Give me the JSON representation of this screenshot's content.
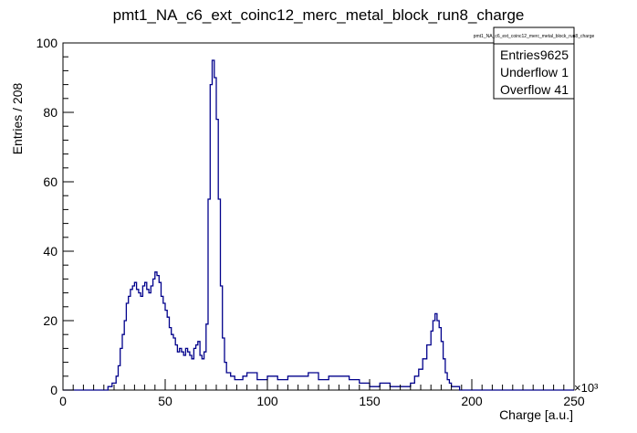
{
  "chart_data": {
    "type": "histogram",
    "title": "pmt1_NA_c6_ext_coinc12_merc_metal_block_run8_charge",
    "xlabel": "Charge [a.u.]",
    "ylabel": "Entries / 208",
    "x_multiplier_label": "×10³",
    "xlim": [
      0,
      250
    ],
    "ylim": [
      0,
      100
    ],
    "x_ticks": [
      0,
      50,
      100,
      150,
      200,
      250
    ],
    "y_ticks": [
      0,
      20,
      40,
      60,
      80,
      100
    ],
    "line_color": "#00008b",
    "grid": false,
    "legend": "none",
    "stats_box": {
      "title": "pmt1_NA_c6_ext_coinc12_merc_metal_block_run8_charge",
      "position": "top-right",
      "rows": [
        {
          "label": "Entries",
          "value": "9625"
        },
        {
          "label": "Underflow",
          "value": "1"
        },
        {
          "label": "Overflow",
          "value": "41"
        }
      ]
    },
    "series": [
      {
        "x": [
          0,
          10,
          20,
          22,
          24,
          26,
          27,
          28,
          29,
          30,
          31,
          32,
          33,
          34,
          35,
          36,
          37,
          38,
          39,
          40,
          41,
          42,
          43,
          44,
          45,
          46,
          47,
          48,
          49,
          50,
          51,
          52,
          53,
          54,
          55,
          56,
          57,
          58,
          59,
          60,
          61,
          62,
          63,
          64,
          65,
          66,
          67,
          68,
          69,
          70,
          71,
          72,
          73,
          74,
          75,
          76,
          77,
          78,
          79,
          80,
          82,
          84,
          86,
          88,
          90,
          95,
          100,
          105,
          110,
          115,
          120,
          125,
          130,
          135,
          140,
          145,
          150,
          155,
          160,
          165,
          170,
          172,
          174,
          176,
          178,
          180,
          181,
          182,
          183,
          184,
          185,
          186,
          187,
          188,
          189,
          190,
          192,
          194,
          196,
          198,
          200,
          205,
          210,
          215,
          220,
          225,
          230,
          240,
          250
        ],
        "y": [
          0,
          0,
          0,
          1,
          2,
          4,
          7,
          12,
          16,
          20,
          25,
          27,
          29,
          30,
          31,
          29,
          28,
          27,
          30,
          31,
          29,
          28,
          30,
          32,
          34,
          33,
          31,
          27,
          25,
          23,
          21,
          18,
          16,
          15,
          13,
          11,
          12,
          11,
          10,
          12,
          11,
          10,
          9,
          12,
          13,
          14,
          10,
          9,
          11,
          19,
          55,
          88,
          95,
          90,
          78,
          55,
          30,
          15,
          8,
          5,
          4,
          3,
          3,
          4,
          5,
          3,
          4,
          3,
          4,
          4,
          5,
          3,
          4,
          4,
          3,
          2,
          1,
          2,
          1,
          1,
          2,
          4,
          6,
          9,
          13,
          17,
          20,
          22,
          20,
          18,
          14,
          9,
          5,
          3,
          2,
          1,
          1,
          0,
          0,
          0,
          0,
          0,
          0,
          0,
          0,
          0,
          0,
          0,
          0
        ]
      }
    ]
  }
}
